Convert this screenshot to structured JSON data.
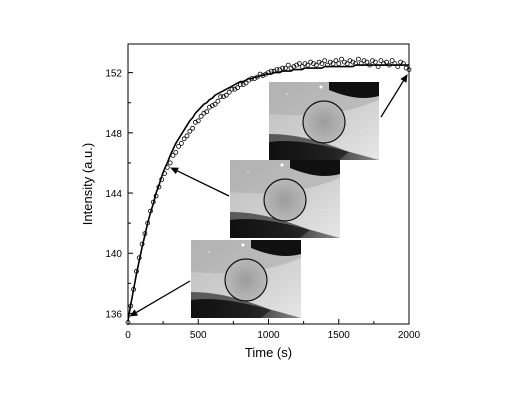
{
  "chart_data": {
    "type": "scatter",
    "xlabel": "Time (s)",
    "ylabel": "Intensity (a.u.)",
    "xlim": [
      0,
      2000
    ],
    "ylim": [
      135.3,
      153.9
    ],
    "xticks": [
      0,
      500,
      1000,
      1500,
      2000
    ],
    "yticks": [
      136,
      140,
      144,
      148,
      152
    ],
    "x_minor_step": 250,
    "y_minor_step": 2,
    "grid": false,
    "series": [
      {
        "kind": "points",
        "marker": "open-circle",
        "x": [
          0,
          20,
          40,
          60,
          80,
          100,
          120,
          140,
          160,
          180,
          200,
          220,
          240,
          260,
          280,
          300,
          320,
          340,
          360,
          380,
          400,
          420,
          440,
          460,
          480,
          500,
          520,
          540,
          560,
          580,
          600,
          620,
          640,
          660,
          680,
          700,
          720,
          740,
          760,
          780,
          800,
          820,
          840,
          860,
          880,
          900,
          920,
          940,
          960,
          980,
          1000,
          1020,
          1040,
          1060,
          1080,
          1100,
          1120,
          1140,
          1160,
          1180,
          1200,
          1220,
          1240,
          1260,
          1280,
          1300,
          1320,
          1340,
          1360,
          1380,
          1400,
          1420,
          1440,
          1460,
          1480,
          1500,
          1520,
          1540,
          1560,
          1580,
          1600,
          1620,
          1640,
          1660,
          1680,
          1700,
          1720,
          1740,
          1760,
          1780,
          1800,
          1820,
          1840,
          1860,
          1880,
          1900,
          1920,
          1940,
          1960,
          1980,
          2000
        ],
        "y": [
          135.4,
          136.5,
          137.6,
          138.8,
          139.7,
          140.6,
          141.3,
          142.0,
          142.8,
          143.4,
          143.8,
          144.4,
          144.9,
          145.3,
          145.7,
          146.0,
          146.5,
          146.7,
          147.1,
          147.3,
          147.6,
          147.8,
          148.1,
          148.3,
          148.7,
          148.8,
          149.1,
          149.3,
          149.4,
          149.7,
          149.8,
          149.9,
          150.1,
          150.4,
          150.4,
          150.5,
          150.7,
          150.9,
          150.9,
          151.0,
          151.2,
          151.2,
          151.3,
          151.5,
          151.6,
          151.6,
          151.7,
          151.9,
          151.8,
          151.9,
          152.0,
          152.1,
          152.1,
          152.2,
          152.2,
          152.3,
          152.3,
          152.5,
          152.3,
          152.4,
          152.5,
          152.6,
          152.4,
          152.6,
          152.5,
          152.7,
          152.6,
          152.5,
          152.7,
          152.6,
          152.8,
          152.5,
          152.7,
          152.6,
          152.8,
          152.6,
          152.9,
          152.7,
          152.6,
          152.8,
          152.7,
          152.6,
          152.9,
          152.6,
          152.8,
          152.7,
          152.5,
          152.8,
          152.7,
          152.4,
          152.8,
          152.6,
          152.7,
          152.5,
          152.8,
          152.6,
          152.4,
          152.7,
          152.6,
          152.3,
          152.2
        ]
      },
      {
        "kind": "line",
        "x": [
          0,
          20,
          40,
          60,
          80,
          100,
          120,
          140,
          160,
          180,
          200,
          220,
          240,
          260,
          280,
          300,
          320,
          340,
          360,
          380,
          400,
          420,
          440,
          460,
          480,
          500,
          520,
          540,
          560,
          580,
          600,
          620,
          640,
          660,
          680,
          700,
          720,
          740,
          760,
          780,
          800,
          820,
          840,
          860,
          880,
          900,
          920,
          940,
          960,
          980,
          1000,
          1020,
          1040,
          1060,
          1080,
          1100,
          1120,
          1140,
          1160,
          1180,
          1200,
          1220,
          1240,
          1260,
          1280,
          1300,
          1320,
          1340,
          1360,
          1380,
          1400,
          1420,
          1440,
          1460,
          1480,
          1500,
          1520,
          1540,
          1560,
          1580,
          1600,
          1620,
          1640,
          1660,
          1680,
          1700,
          1720,
          1740,
          1760,
          1780,
          1800,
          1820,
          1840,
          1860,
          1880,
          1900,
          1920,
          1940,
          1960,
          1980,
          2000
        ],
        "y": [
          135.5,
          136.6,
          137.6,
          138.6,
          139.5,
          140.4,
          141.2,
          142.0,
          142.7,
          143.3,
          144.0,
          144.5,
          145.1,
          145.6,
          146.0,
          146.5,
          146.9,
          147.3,
          147.6,
          147.9,
          148.2,
          148.5,
          148.8,
          149.0,
          149.3,
          149.5,
          149.7,
          149.9,
          150.0,
          150.2,
          150.3,
          150.5,
          150.6,
          150.7,
          150.8,
          150.9,
          151.0,
          151.1,
          151.2,
          151.3,
          151.4,
          151.4,
          151.5,
          151.6,
          151.6,
          151.7,
          151.7,
          151.8,
          151.8,
          151.9,
          151.9,
          151.9,
          152.0,
          152.0,
          152.0,
          152.1,
          152.1,
          152.1,
          152.1,
          152.2,
          152.2,
          152.2,
          152.2,
          152.3,
          152.3,
          152.3,
          152.3,
          152.3,
          152.3,
          152.3,
          152.4,
          152.4,
          152.4,
          152.4,
          152.4,
          152.4,
          152.4,
          152.4,
          152.4,
          152.4,
          152.4,
          152.5,
          152.5,
          152.5,
          152.5,
          152.5,
          152.5,
          152.5,
          152.5,
          152.5,
          152.5,
          152.5,
          152.5,
          152.5,
          152.5,
          152.5,
          152.5,
          152.5,
          152.5,
          152.5,
          152.5
        ]
      }
    ],
    "insets": [
      {
        "name": "inset-early",
        "points_to": {
          "x": 10,
          "y": 135.8
        }
      },
      {
        "name": "inset-middle",
        "points_to": {
          "x": 300,
          "y": 145.7
        }
      },
      {
        "name": "inset-late",
        "points_to": {
          "x": 1990,
          "y": 151.9
        }
      }
    ]
  },
  "colors": {
    "axis": "#000000",
    "marker": "#000000",
    "fit": "#000000",
    "image_light": "#d9d9d9",
    "image_dark": "#1a1a1a"
  }
}
